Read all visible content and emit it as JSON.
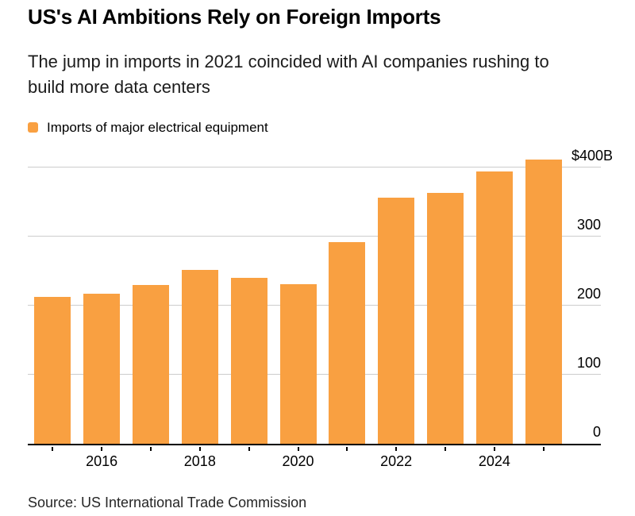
{
  "header": {
    "title": "US's AI Ambitions Rely on Foreign Imports",
    "subtitle": "The jump in imports in 2021 coincided with AI companies rushing to build more data centers"
  },
  "legend": {
    "label": "Imports of major electrical equipment",
    "swatch_color": "#f9a041"
  },
  "chart_data": {
    "type": "bar",
    "title": "US's AI Ambitions Rely on Foreign Imports",
    "series_name": "Imports of major electrical equipment",
    "unit": "USD billions",
    "categories": [
      2015,
      2016,
      2017,
      2018,
      2019,
      2020,
      2021,
      2022,
      2023,
      2024,
      2025
    ],
    "values": [
      213,
      217,
      230,
      252,
      241,
      231,
      292,
      357,
      363,
      394,
      412
    ],
    "bar_color": "#f9a041",
    "ylim": [
      0,
      421
    ],
    "y_gridlines": [
      0,
      100,
      200,
      300,
      400
    ],
    "y_gridline_labels": [
      "0",
      "100",
      "200",
      "300",
      "$400B"
    ],
    "x_labeled_indices": [
      1,
      3,
      5,
      7,
      9
    ],
    "x_tick_labels": [
      "2016",
      "2018",
      "2020",
      "2022",
      "2024"
    ],
    "grid": "horizontal",
    "gridline_color": "#cccccc",
    "legend_position": "top-left",
    "axis_side": "right"
  },
  "footer": {
    "source": "Source: US International Trade Commission"
  }
}
